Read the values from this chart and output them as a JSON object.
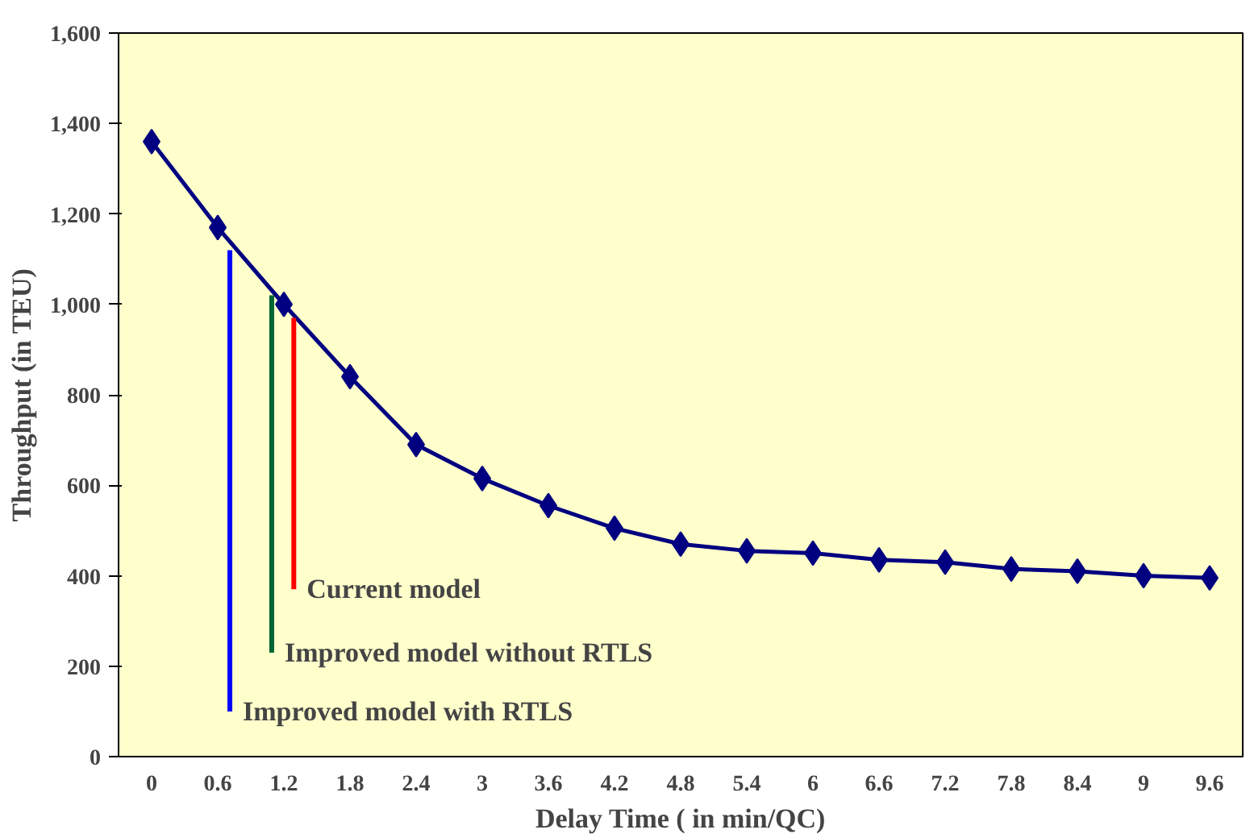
{
  "chart_data": {
    "type": "line",
    "xlabel": "Delay Time ( in min/QC)",
    "ylabel": "Throughput (in TEU)",
    "x": [
      0,
      0.6,
      1.2,
      1.8,
      2.4,
      3,
      3.6,
      4.2,
      4.8,
      5.4,
      6,
      6.6,
      7.2,
      7.8,
      8.4,
      9,
      9.6
    ],
    "xlim": [
      -0.3,
      9.9
    ],
    "xticks": [
      0,
      {
        "value": 0.6,
        "label": "0.6"
      },
      {
        "value": 1.2,
        "label": "1.2"
      },
      {
        "value": 1.8,
        "label": "1.8"
      },
      {
        "value": 2.4,
        "label": "2.4"
      },
      3,
      {
        "value": 3.6,
        "label": "3.6"
      },
      {
        "value": 4.2,
        "label": "4.2"
      },
      {
        "value": 4.8,
        "label": "4.8"
      },
      {
        "value": 5.4,
        "label": "5.4"
      },
      6,
      {
        "value": 6.6,
        "label": "6.6"
      },
      {
        "value": 7.2,
        "label": "7.2"
      },
      {
        "value": 7.8,
        "label": "7.8"
      },
      {
        "value": 8.4,
        "label": "8.4"
      },
      9,
      {
        "value": 9.6,
        "label": "9.6"
      }
    ],
    "ylim": [
      0,
      1600
    ],
    "yticks": [
      0,
      200,
      400,
      600,
      800,
      {
        "value": 1000,
        "label": "1,000"
      },
      {
        "value": 1200,
        "label": "1,200"
      },
      {
        "value": 1400,
        "label": "1,400"
      },
      {
        "value": 1600,
        "label": "1,600"
      }
    ],
    "grid": false,
    "series": [
      {
        "color": "#000080",
        "marker": "diamond",
        "values": [
          1360,
          1170,
          1000,
          840,
          690,
          615,
          555,
          505,
          470,
          455,
          450,
          435,
          430,
          415,
          410,
          400,
          395
        ]
      },
      {
        "color": "#0000ff",
        "marker": "none",
        "x": [
          0.71,
          0.71
        ],
        "values": [
          100,
          1120
        ]
      },
      {
        "color": "#006633",
        "marker": "none",
        "x": [
          1.09,
          1.09
        ],
        "values": [
          230,
          1020
        ]
      },
      {
        "color": "#ff0000",
        "marker": "none",
        "x": [
          1.29,
          1.29
        ],
        "values": [
          370,
          970
        ]
      }
    ],
    "annotations": [
      {
        "text": "Current model",
        "x": 1.29,
        "y": 370
      },
      {
        "text": "Improved model without RTLS",
        "x": 1.09,
        "y": 230
      },
      {
        "text": "Improved model with RTLS",
        "x": 0.71,
        "y": 100
      }
    ]
  }
}
